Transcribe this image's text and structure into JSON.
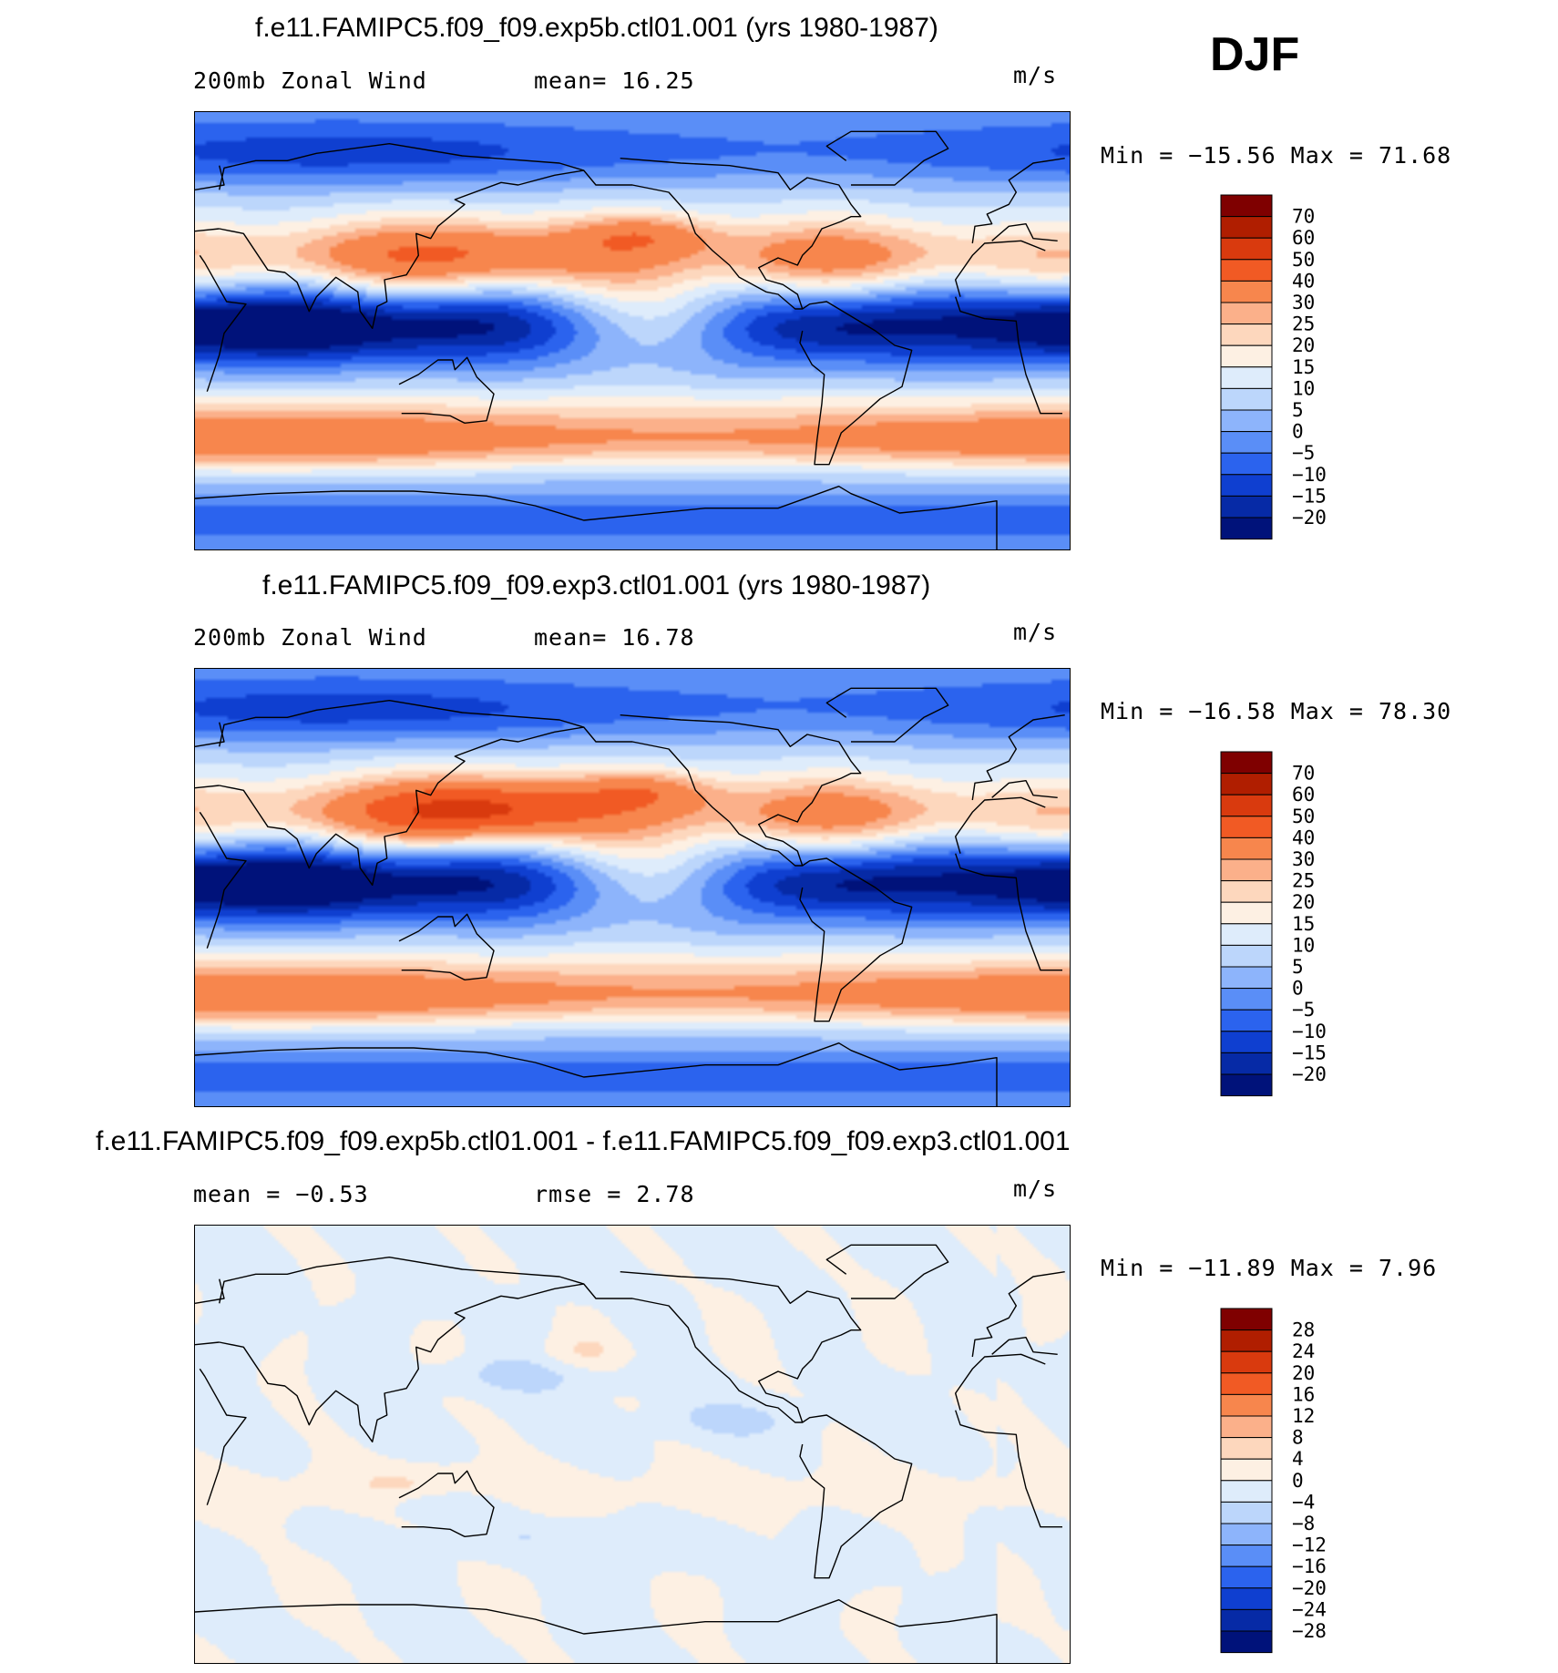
{
  "season": "DJF",
  "panels": [
    {
      "title": "f.e11.FAMIPC5.f09_f09.exp5b.ctl01.001 (yrs 1980-1987)",
      "left_label": "200mb Zonal Wind",
      "mid_label": "mean=   16.25",
      "units": "m/s",
      "minmax": "Min = −15.56 Max =   71.68",
      "scale_kind": "wind",
      "levels": [
        "70",
        "60",
        "50",
        "40",
        "30",
        "25",
        "20",
        "15",
        "10",
        "5",
        "0",
        "−5",
        "−10",
        "−15",
        "−20"
      ]
    },
    {
      "title": "f.e11.FAMIPC5.f09_f09.exp3.ctl01.001 (yrs 1980-1987)",
      "left_label": "200mb Zonal Wind",
      "mid_label": "mean=   16.78",
      "units": "m/s",
      "minmax": "Min = −16.58 Max =   78.30",
      "scale_kind": "wind",
      "levels": [
        "70",
        "60",
        "50",
        "40",
        "30",
        "25",
        "20",
        "15",
        "10",
        "5",
        "0",
        "−5",
        "−10",
        "−15",
        "−20"
      ]
    },
    {
      "title": "f.e11.FAMIPC5.f09_f09.exp5b.ctl01.001 - f.e11.FAMIPC5.f09_f09.exp3.ctl01.001",
      "left_label": "mean =   −0.53",
      "mid_label": "rmse =    2.78",
      "units": "m/s",
      "minmax": "Min = −11.89 Max =    7.96",
      "scale_kind": "diff",
      "levels": [
        "28",
        "24",
        "20",
        "16",
        "12",
        "8",
        "4",
        "0",
        "−4",
        "−8",
        "−12",
        "−16",
        "−20",
        "−24",
        "−28"
      ]
    }
  ],
  "colors": {
    "wind_bins": [
      "#7f0000",
      "#b01e00",
      "#d93a0e",
      "#f15a24",
      "#f7864d",
      "#fbb08a",
      "#fdd7bd",
      "#fdf0e3",
      "#deecfb",
      "#bcd6fb",
      "#8db4fb",
      "#5a8ef7",
      "#2b63ee",
      "#0f3fd0",
      "#062aa6",
      "#00127a"
    ],
    "diff_bins": [
      "#7f0000",
      "#b01e00",
      "#d93a0e",
      "#f15a24",
      "#f7864d",
      "#fbb08a",
      "#fdd7bd",
      "#fdf0e3",
      "#deecfb",
      "#bcd6fb",
      "#8db4fb",
      "#5a8ef7",
      "#2b63ee",
      "#0f3fd0",
      "#062aa6",
      "#00127a"
    ]
  },
  "chart_data": [
    {
      "type": "heatmap",
      "title": "f.e11.FAMIPC5.f09_f09.exp5b.ctl01.001 (yrs 1980-1987)",
      "subtitle": "200mb Zonal Wind",
      "season": "DJF",
      "units": "m/s",
      "mean": 16.25,
      "min": -15.56,
      "max": 71.68,
      "contour_levels": [
        -20,
        -15,
        -10,
        -5,
        0,
        5,
        10,
        15,
        20,
        25,
        30,
        40,
        50,
        60,
        70
      ]
    },
    {
      "type": "heatmap",
      "title": "f.e11.FAMIPC5.f09_f09.exp3.ctl01.001 (yrs 1980-1987)",
      "subtitle": "200mb Zonal Wind",
      "season": "DJF",
      "units": "m/s",
      "mean": 16.78,
      "min": -16.58,
      "max": 78.3,
      "contour_levels": [
        -20,
        -15,
        -10,
        -5,
        0,
        5,
        10,
        15,
        20,
        25,
        30,
        40,
        50,
        60,
        70
      ]
    },
    {
      "type": "heatmap",
      "title": "f.e11.FAMIPC5.f09_f09.exp5b.ctl01.001 - f.e11.FAMIPC5.f09_f09.exp3.ctl01.001",
      "season": "DJF",
      "units": "m/s",
      "mean": -0.53,
      "rmse": 2.78,
      "min": -11.89,
      "max": 7.96,
      "contour_levels": [
        -28,
        -24,
        -20,
        -16,
        -12,
        -8,
        -4,
        0,
        4,
        8,
        12,
        16,
        20,
        24,
        28
      ]
    }
  ]
}
